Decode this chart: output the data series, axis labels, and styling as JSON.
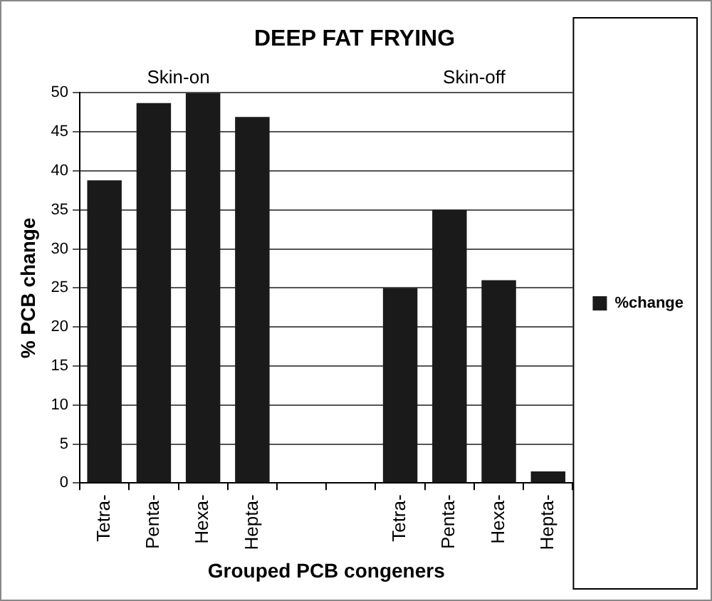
{
  "chart_data": {
    "type": "bar",
    "title": "DEEP FAT FRYING",
    "xlabel": "Grouped PCB congeners",
    "ylabel": "% PCB change",
    "categories": [
      "Tetra-",
      "Penta-",
      "Hexa-",
      "Hepta-",
      null,
      null,
      "Tetra-",
      "Penta-",
      "Hexa-",
      "Hepta-"
    ],
    "series": [
      {
        "name": "%change",
        "color": "#1a1a1a",
        "values": [
          38.8,
          48.7,
          50,
          46.9,
          null,
          null,
          25,
          35,
          26,
          1.5
        ]
      }
    ],
    "annotations": [
      "Skin-on",
      "Skin-off"
    ],
    "ylim": [
      0,
      50
    ],
    "yticks": [
      0,
      5,
      10,
      15,
      20,
      25,
      30,
      35,
      40,
      45,
      50
    ],
    "grid": "y",
    "legend": "right"
  }
}
